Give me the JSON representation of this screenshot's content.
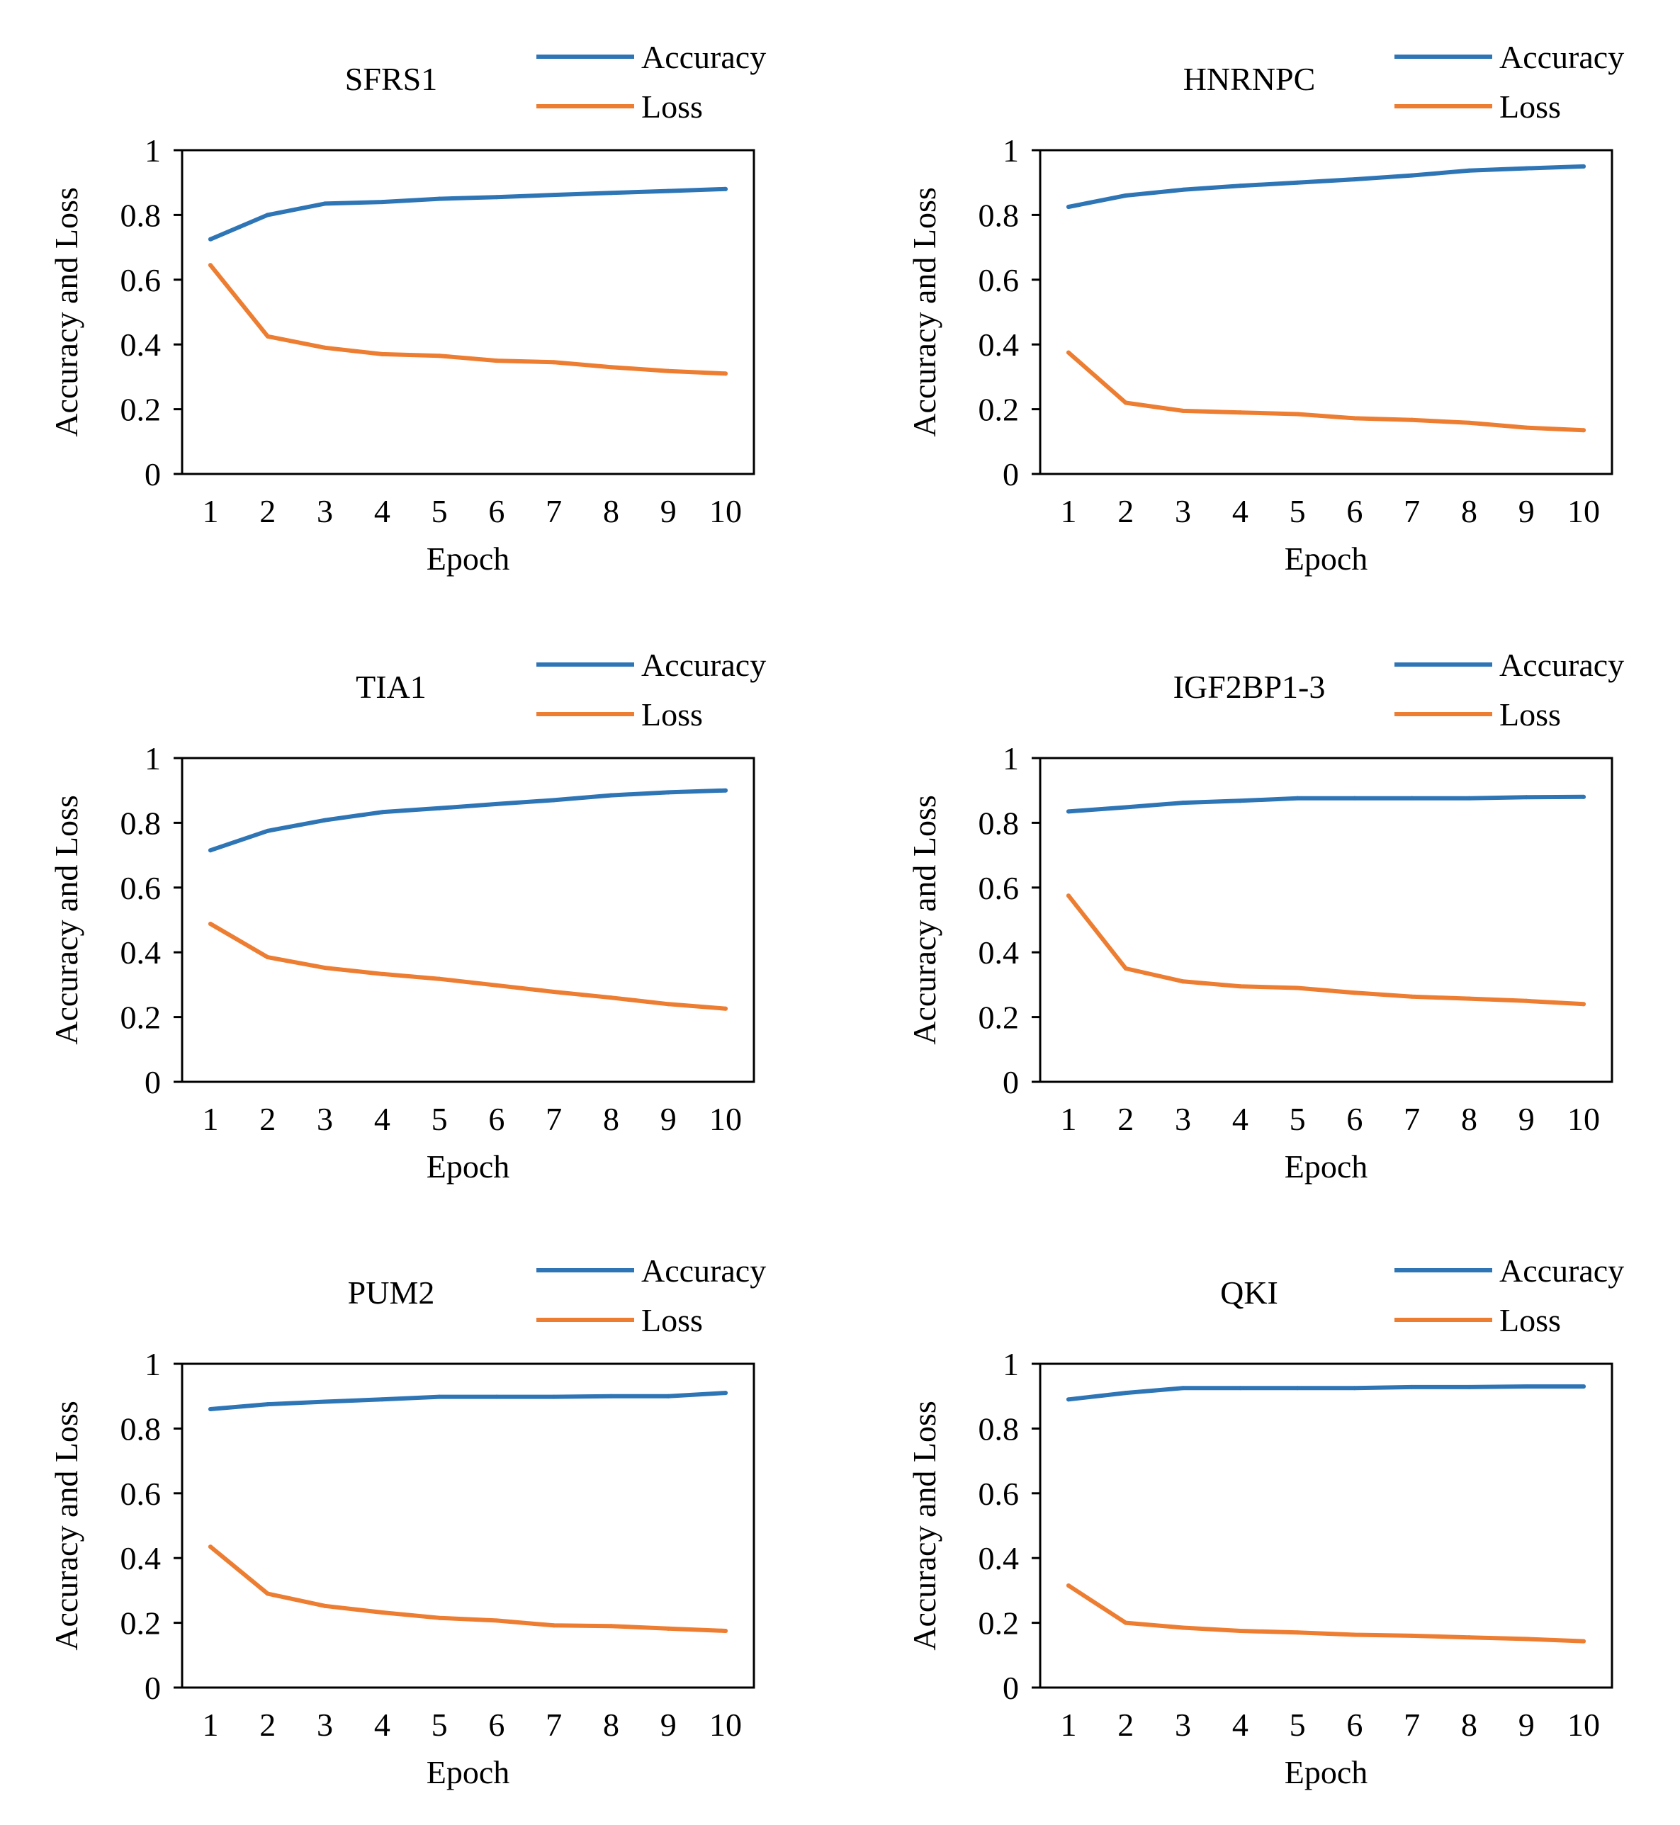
{
  "figure": {
    "description_colors": {
      "accuracy": "#2E75B6",
      "loss": "#ED7D31",
      "axis": "#000000",
      "background": "#FFFFFF"
    }
  },
  "chart_data": [
    {
      "type": "line",
      "title": "SFRS1",
      "xlabel": "Epoch",
      "ylabel": "Accuracy and Loss",
      "x": [
        1,
        2,
        3,
        4,
        5,
        6,
        7,
        8,
        9,
        10
      ],
      "x_tick_labels": [
        "1",
        "2",
        "3",
        "4",
        "5",
        "6",
        "7",
        "8",
        "9",
        "10"
      ],
      "y_tick_labels": [
        "0",
        "0.2",
        "0.4",
        "0.6",
        "0.8",
        "1"
      ],
      "ylim": [
        0,
        1
      ],
      "grid": false,
      "legend_position": "top-right",
      "series": [
        {
          "name": "Accuracy",
          "color": "#2E75B6",
          "values": [
            0.725,
            0.8,
            0.835,
            0.84,
            0.85,
            0.855,
            0.862,
            0.868,
            0.874,
            0.88
          ]
        },
        {
          "name": "Loss",
          "color": "#ED7D31",
          "values": [
            0.645,
            0.425,
            0.39,
            0.37,
            0.365,
            0.35,
            0.345,
            0.33,
            0.318,
            0.31
          ]
        }
      ]
    },
    {
      "type": "line",
      "title": "HNRNPC",
      "xlabel": "Epoch",
      "ylabel": "Accuracy and Loss",
      "x": [
        1,
        2,
        3,
        4,
        5,
        6,
        7,
        8,
        9,
        10
      ],
      "x_tick_labels": [
        "1",
        "2",
        "3",
        "4",
        "5",
        "6",
        "7",
        "8",
        "9",
        "10"
      ],
      "y_tick_labels": [
        "0",
        "0.2",
        "0.4",
        "0.6",
        "0.8",
        "1"
      ],
      "ylim": [
        0,
        1
      ],
      "grid": false,
      "legend_position": "top-right",
      "series": [
        {
          "name": "Accuracy",
          "color": "#2E75B6",
          "values": [
            0.825,
            0.86,
            0.878,
            0.89,
            0.9,
            0.91,
            0.922,
            0.937,
            0.944,
            0.95
          ]
        },
        {
          "name": "Loss",
          "color": "#ED7D31",
          "values": [
            0.375,
            0.22,
            0.195,
            0.19,
            0.185,
            0.172,
            0.167,
            0.158,
            0.143,
            0.135
          ]
        }
      ]
    },
    {
      "type": "line",
      "title": "TIA1",
      "xlabel": "Epoch",
      "ylabel": "Accuracy and Loss",
      "x": [
        1,
        2,
        3,
        4,
        5,
        6,
        7,
        8,
        9,
        10
      ],
      "x_tick_labels": [
        "1",
        "2",
        "3",
        "4",
        "5",
        "6",
        "7",
        "8",
        "9",
        "10"
      ],
      "y_tick_labels": [
        "0",
        "0.2",
        "0.4",
        "0.6",
        "0.8",
        "1"
      ],
      "ylim": [
        0,
        1
      ],
      "grid": false,
      "legend_position": "top-right",
      "series": [
        {
          "name": "Accuracy",
          "color": "#2E75B6",
          "values": [
            0.715,
            0.775,
            0.808,
            0.833,
            0.845,
            0.858,
            0.87,
            0.885,
            0.894,
            0.9
          ]
        },
        {
          "name": "Loss",
          "color": "#ED7D31",
          "values": [
            0.488,
            0.385,
            0.352,
            0.333,
            0.318,
            0.298,
            0.278,
            0.26,
            0.24,
            0.226
          ]
        }
      ]
    },
    {
      "type": "line",
      "title": "IGF2BP1-3",
      "xlabel": "Epoch",
      "ylabel": "Accuracy and Loss",
      "x": [
        1,
        2,
        3,
        4,
        5,
        6,
        7,
        8,
        9,
        10
      ],
      "x_tick_labels": [
        "1",
        "2",
        "3",
        "4",
        "5",
        "6",
        "7",
        "8",
        "9",
        "10"
      ],
      "y_tick_labels": [
        "0",
        "0.2",
        "0.4",
        "0.6",
        "0.8",
        "1"
      ],
      "ylim": [
        0,
        1
      ],
      "grid": false,
      "legend_position": "top-right",
      "series": [
        {
          "name": "Accuracy",
          "color": "#2E75B6",
          "values": [
            0.835,
            0.848,
            0.862,
            0.868,
            0.876,
            0.876,
            0.876,
            0.876,
            0.879,
            0.88
          ]
        },
        {
          "name": "Loss",
          "color": "#ED7D31",
          "values": [
            0.575,
            0.35,
            0.31,
            0.295,
            0.29,
            0.275,
            0.263,
            0.257,
            0.25,
            0.24
          ]
        }
      ]
    },
    {
      "type": "line",
      "title": "PUM2",
      "xlabel": "Epoch",
      "ylabel": "Accuracy and Loss",
      "x": [
        1,
        2,
        3,
        4,
        5,
        6,
        7,
        8,
        9,
        10
      ],
      "x_tick_labels": [
        "1",
        "2",
        "3",
        "4",
        "5",
        "6",
        "7",
        "8",
        "9",
        "10"
      ],
      "y_tick_labels": [
        "0",
        "0.2",
        "0.4",
        "0.6",
        "0.8",
        "1"
      ],
      "ylim": [
        0,
        1
      ],
      "grid": false,
      "legend_position": "top-right",
      "series": [
        {
          "name": "Accuracy",
          "color": "#2E75B6",
          "values": [
            0.86,
            0.875,
            0.883,
            0.89,
            0.898,
            0.898,
            0.898,
            0.9,
            0.9,
            0.91
          ]
        },
        {
          "name": "Loss",
          "color": "#ED7D31",
          "values": [
            0.435,
            0.29,
            0.252,
            0.232,
            0.215,
            0.207,
            0.192,
            0.19,
            0.182,
            0.175
          ]
        }
      ]
    },
    {
      "type": "line",
      "title": "QKI",
      "xlabel": "Epoch",
      "ylabel": "Accuracy and Loss",
      "x": [
        1,
        2,
        3,
        4,
        5,
        6,
        7,
        8,
        9,
        10
      ],
      "x_tick_labels": [
        "1",
        "2",
        "3",
        "4",
        "5",
        "6",
        "7",
        "8",
        "9",
        "10"
      ],
      "y_tick_labels": [
        "0",
        "0.2",
        "0.4",
        "0.6",
        "0.8",
        "1"
      ],
      "ylim": [
        0,
        1
      ],
      "grid": false,
      "legend_position": "top-right",
      "series": [
        {
          "name": "Accuracy",
          "color": "#2E75B6",
          "values": [
            0.89,
            0.91,
            0.925,
            0.925,
            0.925,
            0.925,
            0.928,
            0.928,
            0.93,
            0.93
          ]
        },
        {
          "name": "Loss",
          "color": "#ED7D31",
          "values": [
            0.315,
            0.2,
            0.185,
            0.175,
            0.17,
            0.163,
            0.16,
            0.155,
            0.15,
            0.143
          ]
        }
      ]
    }
  ]
}
